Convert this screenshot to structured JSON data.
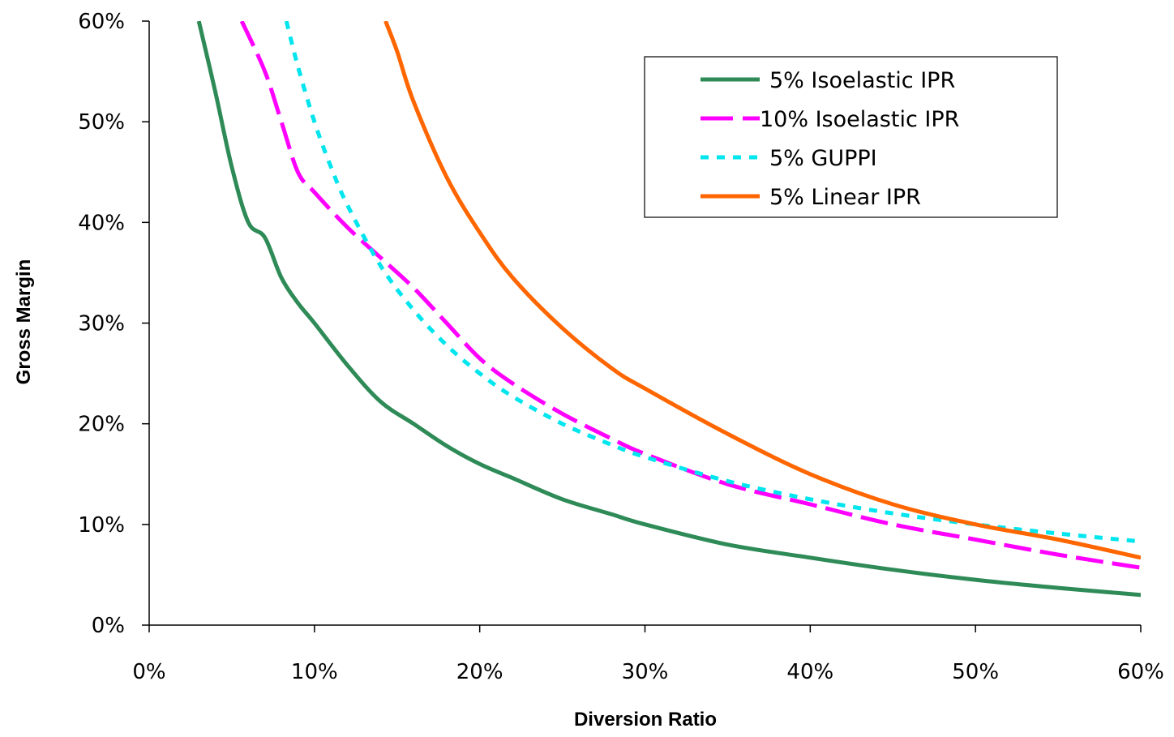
{
  "chart_data": {
    "type": "line",
    "title": "",
    "xlabel": "Diversion Ratio",
    "ylabel": "Gross Margin",
    "xlim": [
      0,
      0.6
    ],
    "ylim": [
      0,
      0.6
    ],
    "x_ticks": [
      "0%",
      "10%",
      "20%",
      "30%",
      "40%",
      "50%",
      "60%"
    ],
    "y_ticks": [
      "0%",
      "10%",
      "20%",
      "30%",
      "40%",
      "50%",
      "60%"
    ],
    "grid": false,
    "legend_position": "top-right",
    "series": [
      {
        "name": "5% Isoelastic IPR",
        "color": "#2e8b57",
        "style": "solid",
        "x": [
          0.03,
          0.04,
          0.05,
          0.06,
          0.07,
          0.08,
          0.09,
          0.1,
          0.12,
          0.14,
          0.16,
          0.18,
          0.2,
          0.22,
          0.25,
          0.28,
          0.3,
          0.35,
          0.4,
          0.45,
          0.5,
          0.55,
          0.6
        ],
        "y": [
          0.6,
          0.53,
          0.455,
          0.4,
          0.385,
          0.345,
          0.32,
          0.3,
          0.258,
          0.222,
          0.2,
          0.178,
          0.16,
          0.146,
          0.125,
          0.11,
          0.1,
          0.08,
          0.067,
          0.055,
          0.045,
          0.037,
          0.03
        ]
      },
      {
        "name": "10% Isoelastic IPR",
        "color": "#ff00ff",
        "style": "dash",
        "x": [
          0.056,
          0.07,
          0.08,
          0.09,
          0.1,
          0.12,
          0.14,
          0.16,
          0.18,
          0.2,
          0.22,
          0.25,
          0.28,
          0.3,
          0.35,
          0.4,
          0.45,
          0.5,
          0.55,
          0.6
        ],
        "y": [
          0.6,
          0.55,
          0.5,
          0.45,
          0.43,
          0.395,
          0.365,
          0.335,
          0.3,
          0.265,
          0.24,
          0.21,
          0.185,
          0.17,
          0.14,
          0.12,
          0.1,
          0.085,
          0.07,
          0.057
        ]
      },
      {
        "name": "5% GUPPI",
        "color": "#00e5ee",
        "style": "dot",
        "x": [
          0.083,
          0.09,
          0.1,
          0.11,
          0.12,
          0.14,
          0.16,
          0.18,
          0.2,
          0.22,
          0.25,
          0.28,
          0.3,
          0.35,
          0.4,
          0.45,
          0.5,
          0.55,
          0.6
        ],
        "y": [
          0.6,
          0.555,
          0.5,
          0.455,
          0.417,
          0.357,
          0.313,
          0.278,
          0.25,
          0.227,
          0.2,
          0.179,
          0.167,
          0.143,
          0.125,
          0.111,
          0.1,
          0.091,
          0.083
        ]
      },
      {
        "name": "5% Linear IPR",
        "color": "#ff6600",
        "style": "solid",
        "x": [
          0.143,
          0.15,
          0.16,
          0.18,
          0.2,
          0.22,
          0.25,
          0.28,
          0.3,
          0.35,
          0.4,
          0.45,
          0.5,
          0.55,
          0.6
        ],
        "y": [
          0.6,
          0.57,
          0.52,
          0.445,
          0.39,
          0.345,
          0.295,
          0.255,
          0.235,
          0.19,
          0.15,
          0.12,
          0.1,
          0.085,
          0.067
        ]
      }
    ]
  }
}
